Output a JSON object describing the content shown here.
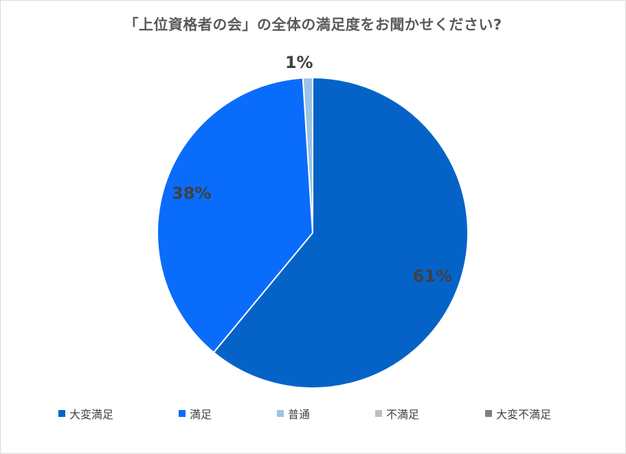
{
  "chart_data": {
    "type": "pie",
    "title": "「上位資格者の会」の全体の満足度をお聞かせください?",
    "categories": [
      "大変満足",
      "満足",
      "普通",
      "不満足",
      "大変不満足"
    ],
    "values": [
      61,
      38,
      1,
      0,
      0
    ],
    "data_labels": [
      "61%",
      "38%",
      "1%",
      "",
      ""
    ],
    "colors": [
      "#0563C8",
      "#0A6CFA",
      "#9DC3E6",
      "#BFBFBF",
      "#7F7F7F"
    ],
    "legend_position": "bottom",
    "start_angle_deg": 0,
    "direction": "clockwise"
  }
}
